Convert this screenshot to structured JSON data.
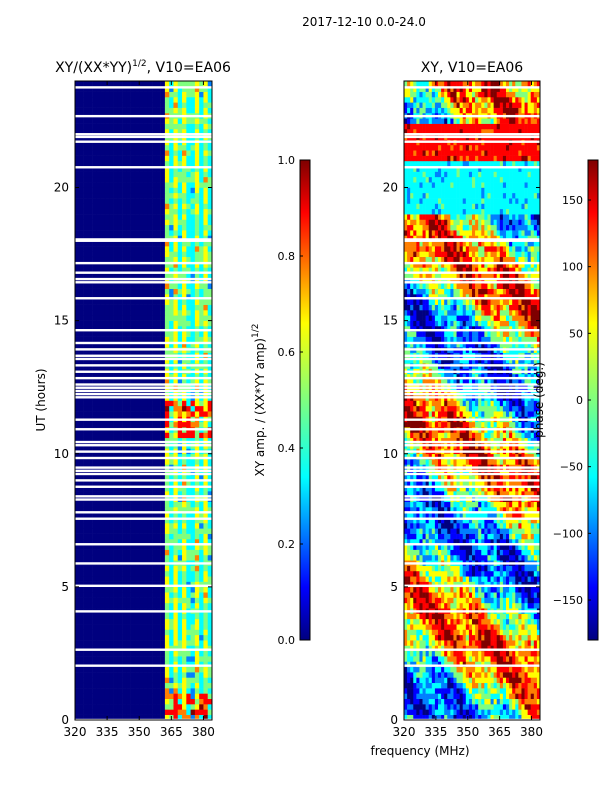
{
  "suptitle": "2017-12-10 0.0-24.0",
  "shared_xlabel": "frequency (MHz)",
  "chart_data": [
    {
      "type": "heatmap",
      "title_main": "XY/(XX*YY)",
      "title_sup": "1/2",
      "title_rest": ", V10=EA06",
      "xlabel": "",
      "ylabel": "UT (hours)",
      "xlim": [
        320,
        384
      ],
      "ylim": [
        0,
        24
      ],
      "xticks": [
        320,
        335,
        350,
        365,
        380
      ],
      "yticks": [
        0,
        5,
        10,
        15,
        20
      ],
      "colorbar": {
        "label_main": "XY amp. / (XX*YY amp)",
        "label_sup": "1/2",
        "min": 0.0,
        "max": 1.0,
        "ticks": [
          0.0,
          0.2,
          0.4,
          0.6,
          0.8,
          1.0
        ],
        "tick_labels": [
          "0.0",
          "0.2",
          "0.4",
          "0.6",
          "0.8",
          "1.0"
        ]
      },
      "description": "Normalized amplitude ~0 below 362 MHz; 0.3–0.9 in 362–384 MHz band"
    },
    {
      "type": "heatmap",
      "title_main": "XY, V10=EA06",
      "title_sup": "",
      "title_rest": "",
      "xlabel": "",
      "ylabel": "",
      "xlim": [
        320,
        384
      ],
      "ylim": [
        0,
        24
      ],
      "xticks": [
        320,
        335,
        350,
        365,
        380
      ],
      "yticks": [
        0,
        5,
        10,
        15,
        20
      ],
      "colorbar": {
        "label_main": "phase (deg.)",
        "label_sup": "",
        "min": -180,
        "max": 180,
        "ticks": [
          -150,
          -100,
          -50,
          0,
          50,
          100,
          150
        ],
        "tick_labels": [
          "−150",
          "−100",
          "−50",
          "0",
          "50",
          "100",
          "150"
        ]
      },
      "description": "Phase varies between -180 and 180 deg across band and time"
    }
  ],
  "colors": {
    "jet": [
      "#00007f",
      "#0000ff",
      "#007fff",
      "#00ffff",
      "#7fff7f",
      "#ffff00",
      "#ff7f00",
      "#ff0000",
      "#7f0000"
    ],
    "background": "#ffffff",
    "axis": "#000000"
  }
}
